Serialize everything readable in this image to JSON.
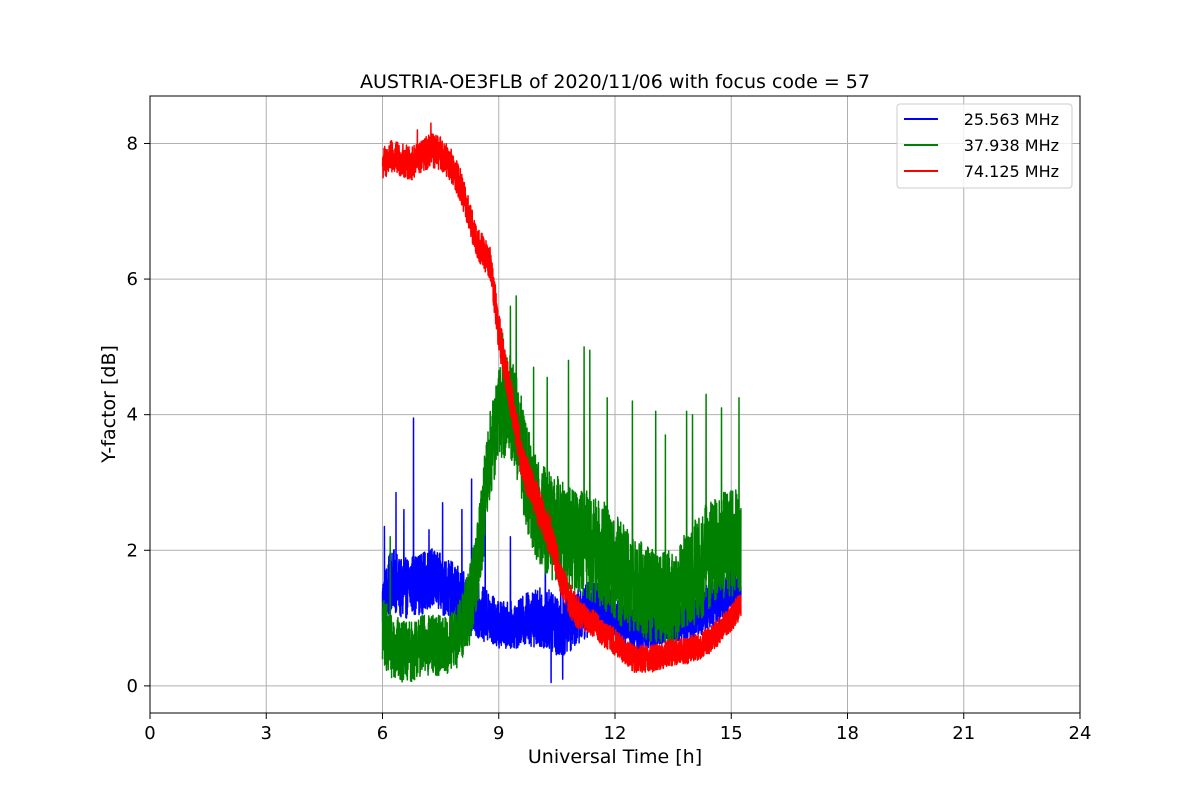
{
  "chart_data": {
    "type": "line",
    "title": "AUSTRIA-OE3FLB of 2020/11/06 with focus code = 57",
    "xlabel": "Universal Time [h]",
    "ylabel": "Y-factor [dB]",
    "xlim": [
      0,
      24
    ],
    "ylim": [
      -0.4,
      8.7
    ],
    "xticks": [
      0,
      3,
      6,
      9,
      12,
      15,
      18,
      21,
      24
    ],
    "yticks": [
      0,
      2,
      4,
      6,
      8
    ],
    "grid": true,
    "legend_position": "top-right",
    "series": [
      {
        "name": "25.563 MHz",
        "color": "#0000ff",
        "x": [
          6.0,
          6.25,
          6.5,
          6.75,
          7.0,
          7.25,
          7.5,
          7.75,
          8.0,
          8.25,
          8.5,
          8.75,
          9.0,
          9.25,
          9.5,
          9.75,
          10.0,
          10.25,
          10.5,
          10.75,
          11.0,
          11.25,
          11.5,
          11.75,
          12.0,
          12.25,
          12.5,
          12.75,
          13.0,
          13.25,
          13.5,
          13.75,
          14.0,
          14.25,
          14.5,
          14.75,
          15.0,
          15.25
        ],
        "y": [
          1.2,
          1.6,
          1.4,
          1.5,
          1.5,
          1.6,
          1.5,
          1.4,
          1.3,
          1.2,
          1.1,
          1.0,
          0.9,
          0.9,
          0.9,
          1.0,
          1.0,
          1.0,
          0.9,
          0.9,
          1.0,
          1.1,
          1.2,
          1.1,
          1.0,
          0.9,
          0.8,
          0.8,
          0.8,
          0.9,
          0.9,
          0.9,
          1.0,
          1.1,
          1.2,
          1.3,
          1.4,
          1.5
        ],
        "noise": [
          0.45,
          0.45,
          0.45,
          0.45,
          0.45,
          0.45,
          0.45,
          0.45,
          0.45,
          0.45,
          0.4,
          0.4,
          0.35,
          0.35,
          0.35,
          0.4,
          0.45,
          0.45,
          0.45,
          0.45,
          0.4,
          0.4,
          0.4,
          0.4,
          0.35,
          0.3,
          0.3,
          0.3,
          0.3,
          0.3,
          0.3,
          0.3,
          0.3,
          0.35,
          0.35,
          0.35,
          0.35,
          0.35
        ],
        "spikes": [
          [
            6.05,
            2.35
          ],
          [
            6.35,
            2.85
          ],
          [
            6.55,
            2.6
          ],
          [
            6.8,
            3.95
          ],
          [
            7.2,
            2.3
          ],
          [
            7.55,
            2.7
          ],
          [
            8.05,
            2.6
          ],
          [
            8.3,
            3.05
          ],
          [
            8.65,
            2.95
          ],
          [
            9.3,
            2.2
          ],
          [
            10.2,
            2.35
          ],
          [
            10.6,
            1.9
          ],
          [
            10.35,
            0.05
          ],
          [
            10.65,
            0.1
          ]
        ]
      },
      {
        "name": "37.938 MHz",
        "color": "#008000",
        "x": [
          6.0,
          6.25,
          6.5,
          6.75,
          7.0,
          7.25,
          7.5,
          7.75,
          8.0,
          8.25,
          8.5,
          8.75,
          9.0,
          9.25,
          9.5,
          9.75,
          10.0,
          10.25,
          10.5,
          10.75,
          11.0,
          11.25,
          11.5,
          11.75,
          12.0,
          12.25,
          12.5,
          12.75,
          13.0,
          13.25,
          13.5,
          13.75,
          14.0,
          14.25,
          14.5,
          14.75,
          15.0,
          15.25
        ],
        "y": [
          0.8,
          0.6,
          0.5,
          0.5,
          0.6,
          0.6,
          0.6,
          0.6,
          0.8,
          1.2,
          2.0,
          3.3,
          4.0,
          4.2,
          3.7,
          3.0,
          2.6,
          2.4,
          2.3,
          2.2,
          2.1,
          2.1,
          2.0,
          1.9,
          1.8,
          1.6,
          1.5,
          1.4,
          1.3,
          1.3,
          1.3,
          1.5,
          1.6,
          1.8,
          2.0,
          2.1,
          2.1,
          2.2
        ],
        "noise": [
          0.5,
          0.5,
          0.45,
          0.45,
          0.45,
          0.45,
          0.45,
          0.45,
          0.5,
          0.6,
          0.7,
          0.7,
          0.7,
          0.8,
          0.8,
          0.8,
          0.8,
          0.8,
          0.8,
          0.8,
          0.8,
          0.8,
          0.8,
          0.8,
          0.8,
          0.8,
          0.7,
          0.7,
          0.7,
          0.7,
          0.7,
          0.7,
          0.8,
          0.8,
          0.8,
          0.8,
          0.8,
          0.8
        ],
        "spikes": [
          [
            6.2,
            2.2
          ],
          [
            9.3,
            5.6
          ],
          [
            9.45,
            5.75
          ],
          [
            9.1,
            5.2
          ],
          [
            9.9,
            4.7
          ],
          [
            10.25,
            4.55
          ],
          [
            10.8,
            4.8
          ],
          [
            11.2,
            5.0
          ],
          [
            11.35,
            4.95
          ],
          [
            11.8,
            4.25
          ],
          [
            12.45,
            4.2
          ],
          [
            13.05,
            4.05
          ],
          [
            13.3,
            3.7
          ],
          [
            13.85,
            4.05
          ],
          [
            14.35,
            4.3
          ],
          [
            14.75,
            4.1
          ],
          [
            15.2,
            4.25
          ],
          [
            14.0,
            4.0
          ]
        ]
      },
      {
        "name": "74.125 MHz",
        "color": "#ff0000",
        "x": [
          6.0,
          6.25,
          6.5,
          6.75,
          7.0,
          7.25,
          7.5,
          7.75,
          8.0,
          8.2,
          8.4,
          8.6,
          8.8,
          9.0,
          9.2,
          9.4,
          9.6,
          9.8,
          10.0,
          10.2,
          10.4,
          10.6,
          10.8,
          11.0,
          11.25,
          11.5,
          11.75,
          12.0,
          12.25,
          12.5,
          12.75,
          13.0,
          13.25,
          13.5,
          13.75,
          14.0,
          14.25,
          14.5,
          14.75,
          15.0,
          15.25
        ],
        "y": [
          7.7,
          7.8,
          7.75,
          7.7,
          7.8,
          7.9,
          7.85,
          7.7,
          7.4,
          7.0,
          6.6,
          6.4,
          6.2,
          5.2,
          4.6,
          4.0,
          3.3,
          3.0,
          2.7,
          2.4,
          2.1,
          1.6,
          1.3,
          1.1,
          1.0,
          0.9,
          0.75,
          0.65,
          0.5,
          0.4,
          0.4,
          0.4,
          0.45,
          0.5,
          0.5,
          0.55,
          0.6,
          0.7,
          0.85,
          1.0,
          1.2
        ],
        "noise": [
          0.25,
          0.25,
          0.25,
          0.25,
          0.25,
          0.25,
          0.25,
          0.25,
          0.25,
          0.25,
          0.25,
          0.25,
          0.25,
          0.3,
          0.3,
          0.3,
          0.3,
          0.3,
          0.3,
          0.3,
          0.3,
          0.25,
          0.25,
          0.25,
          0.2,
          0.2,
          0.2,
          0.2,
          0.2,
          0.2,
          0.2,
          0.2,
          0.2,
          0.2,
          0.2,
          0.2,
          0.2,
          0.2,
          0.2,
          0.2,
          0.2
        ],
        "spikes": [
          [
            7.25,
            8.3
          ],
          [
            6.9,
            8.2
          ]
        ]
      }
    ]
  }
}
